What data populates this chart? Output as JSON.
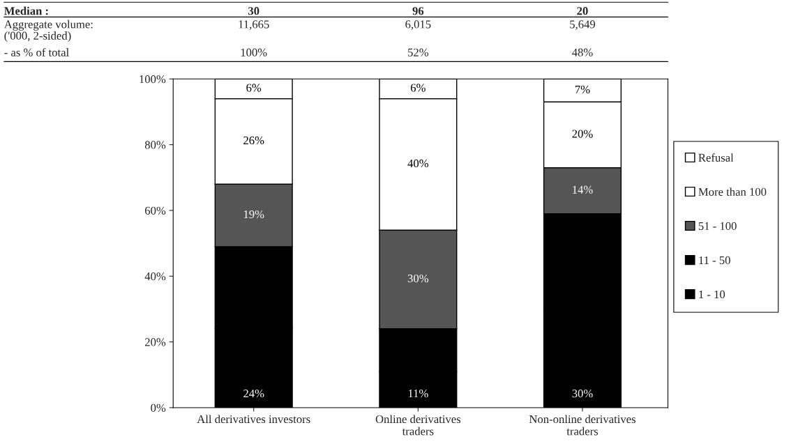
{
  "chart_data": {
    "type": "bar",
    "stacked": true,
    "categories": [
      "All derivatives investors",
      "Online derivatives\ntraders",
      "Non-online derivatives\ntraders"
    ],
    "series": [
      {
        "name": "1 - 10",
        "color": "#000000",
        "values": [
          24,
          11,
          30
        ],
        "value_labels": [
          "24%",
          "11%",
          "30%"
        ]
      },
      {
        "name": "11 - 50",
        "color": "#000000",
        "values": [
          25,
          13,
          29
        ],
        "value_labels": [
          null,
          null,
          null
        ]
      },
      {
        "name": "51 - 100",
        "color": "#555555",
        "values": [
          19,
          30,
          14
        ],
        "value_labels": [
          "19%",
          "30%",
          "14%"
        ]
      },
      {
        "name": "More than 100",
        "color": "#ffffff",
        "values": [
          26,
          40,
          20
        ],
        "value_labels": [
          "26%",
          "40%",
          "20%"
        ]
      },
      {
        "name": "Refusal",
        "color": "#ffffff",
        "values": [
          6,
          6,
          7
        ],
        "value_labels": [
          "6%",
          "6%",
          "7%"
        ]
      }
    ],
    "ylim": [
      0,
      100
    ],
    "yticks": [
      {
        "value": 0,
        "label": "0%"
      },
      {
        "value": 20,
        "label": "20%"
      },
      {
        "value": 40,
        "label": "40%"
      },
      {
        "value": 60,
        "label": "60%"
      },
      {
        "value": 80,
        "label": "80%"
      },
      {
        "value": 100,
        "label": "100%"
      }
    ],
    "legend": "right",
    "annotations": [
      "Median :",
      "30",
      "96",
      "20",
      "Aggregate volume:\n('000, 2-sided)",
      "11,665",
      "6,015",
      "5,649",
      "- as % of total",
      "100%",
      "52%",
      "48%"
    ]
  }
}
